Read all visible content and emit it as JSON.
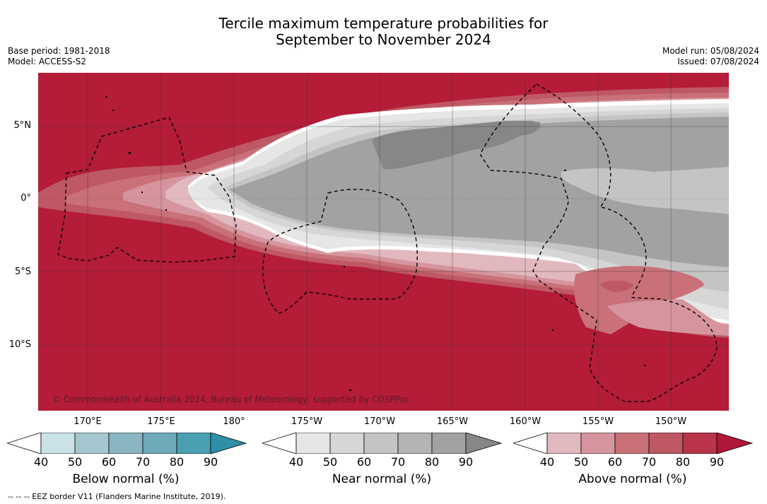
{
  "header": {
    "title_line1": "Tercile maximum temperature probabilities for",
    "title_line2": "September to November 2024",
    "base_period": "Base period: 1981-2018",
    "model": "Model: ACCESS-S2",
    "model_run": "Model run: 05/08/2024",
    "issued": "Issued: 07/08/2024"
  },
  "map": {
    "lat_labels": [
      "5°N",
      "0°",
      "5°S",
      "10°S"
    ],
    "lon_labels": [
      "170°E",
      "175°E",
      "180°",
      "175°W",
      "170°W",
      "165°W",
      "160°W",
      "155°W",
      "150°W"
    ],
    "copyright": "© Commonwealth of Australia 2024, Bureau of Meteorology, supported by COSPPac",
    "colors": {
      "ocean_above": "#b41c38",
      "near_normal_band": "#a2a2a2"
    }
  },
  "legends": [
    {
      "label": "Below normal (%)",
      "ticks": [
        "40",
        "50",
        "60",
        "70",
        "80",
        "90"
      ],
      "colors": [
        "#c9e2e8",
        "#a5c7cf",
        "#8ab6c2",
        "#6eaab9",
        "#4a9fb0",
        "#2e8fa6"
      ]
    },
    {
      "label": "Near normal (%)",
      "ticks": [
        "40",
        "50",
        "60",
        "70",
        "80",
        "90"
      ],
      "colors": [
        "#e6e6e6",
        "#d6d6d6",
        "#c4c4c4",
        "#b4b4b4",
        "#a2a2a2",
        "#878787"
      ]
    },
    {
      "label": "Above normal (%)",
      "ticks": [
        "40",
        "50",
        "60",
        "70",
        "80",
        "90"
      ],
      "colors": [
        "#e2b8bf",
        "#d6959e",
        "#c97079",
        "#bf5865",
        "#b9344a",
        "#b11738"
      ]
    }
  ],
  "footnote": "--  --  -- EEZ border V11 (Flanders Marine Institute, 2019)."
}
